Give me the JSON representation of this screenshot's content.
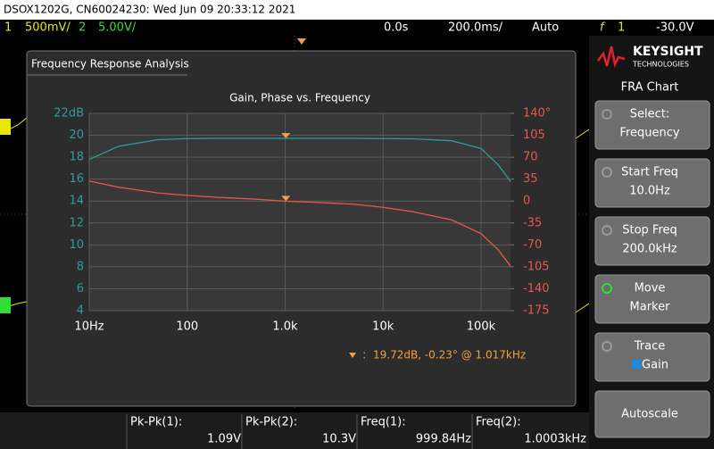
{
  "header": {
    "title": "DSOX1202G, CN60024230: Wed Jun 09 20:33:12 2021"
  },
  "status_bar": {
    "ch1_number": "1",
    "ch1_scale": "500mV/",
    "ch2_number": "2",
    "ch2_scale": "5.00V/",
    "time_offset": "0.0s",
    "time_scale": "200.0ms/",
    "trigger_mode": "Auto",
    "trigger_source": "1",
    "trigger_level": "-30.0V"
  },
  "dialog": {
    "title": "Frequency Response Analysis"
  },
  "chart_data": {
    "type": "line",
    "title": "Gain, Phase vs. Frequency",
    "x": [
      10,
      20,
      50,
      100,
      200,
      500,
      1000,
      2000,
      5000,
      10000,
      20000,
      50000,
      100000,
      150000,
      200000
    ],
    "series": [
      {
        "name": "Gain",
        "color": "#2e9c9c",
        "values": [
          17.8,
          19.0,
          19.6,
          19.7,
          19.72,
          19.72,
          19.72,
          19.72,
          19.72,
          19.7,
          19.68,
          19.5,
          18.8,
          17.3,
          15.8
        ]
      },
      {
        "name": "Phase",
        "color": "#e8574f",
        "axis": "y2",
        "values": [
          32,
          22,
          13,
          9,
          6,
          3,
          -0.23,
          -2,
          -5,
          -10,
          -17,
          -30,
          -52,
          -78,
          -104
        ]
      }
    ],
    "xscale": "log",
    "xlim": [
      10,
      200000
    ],
    "xticks": [
      {
        "value": 10,
        "label": "10Hz"
      },
      100,
      {
        "value": 1000,
        "label": "1.0k"
      },
      {
        "value": 10000,
        "label": "10k"
      },
      {
        "value": 100000,
        "label": "100k"
      }
    ],
    "ylim": [
      4,
      22
    ],
    "yticks": [
      4,
      6,
      8,
      10,
      12,
      14,
      16,
      18,
      20,
      {
        "value": 22,
        "label": "22dB"
      }
    ],
    "y2lim": [
      -175,
      140
    ],
    "y2ticks": [
      -175,
      -140,
      -105,
      -70,
      -35,
      0,
      35,
      70,
      105,
      {
        "value": 140,
        "label": "140°"
      }
    ],
    "grid": true,
    "marker": {
      "x": 1017,
      "gain": 19.72,
      "phase": -0.23,
      "separator": ":",
      "label": "19.72dB, -0.23° @ 1.017kHz",
      "color": "#f0a040"
    }
  },
  "side_panel": {
    "brand": "KEYSIGHT",
    "brand_sub": "TECHNOLOGIES",
    "menu_title": "FRA Chart",
    "buttons": [
      {
        "line1": "Select:",
        "line2": "Frequency"
      },
      {
        "line1": "Start Freq",
        "line2": "10.0Hz"
      },
      {
        "line1": "Stop Freq",
        "line2": "200.0kHz"
      },
      {
        "line1": "Move",
        "line2": "Marker"
      },
      {
        "line1": "Trace",
        "line2": "Gain"
      },
      {
        "line1": "Autoscale"
      }
    ]
  },
  "measurements": [
    {
      "label": "Pk-Pk(1):",
      "value": "1.09V"
    },
    {
      "label": "Pk-Pk(2):",
      "value": "10.3V"
    },
    {
      "label": "Freq(1):",
      "value": "999.84Hz"
    },
    {
      "label": "Freq(2):",
      "value": "1.0003kHz"
    }
  ]
}
